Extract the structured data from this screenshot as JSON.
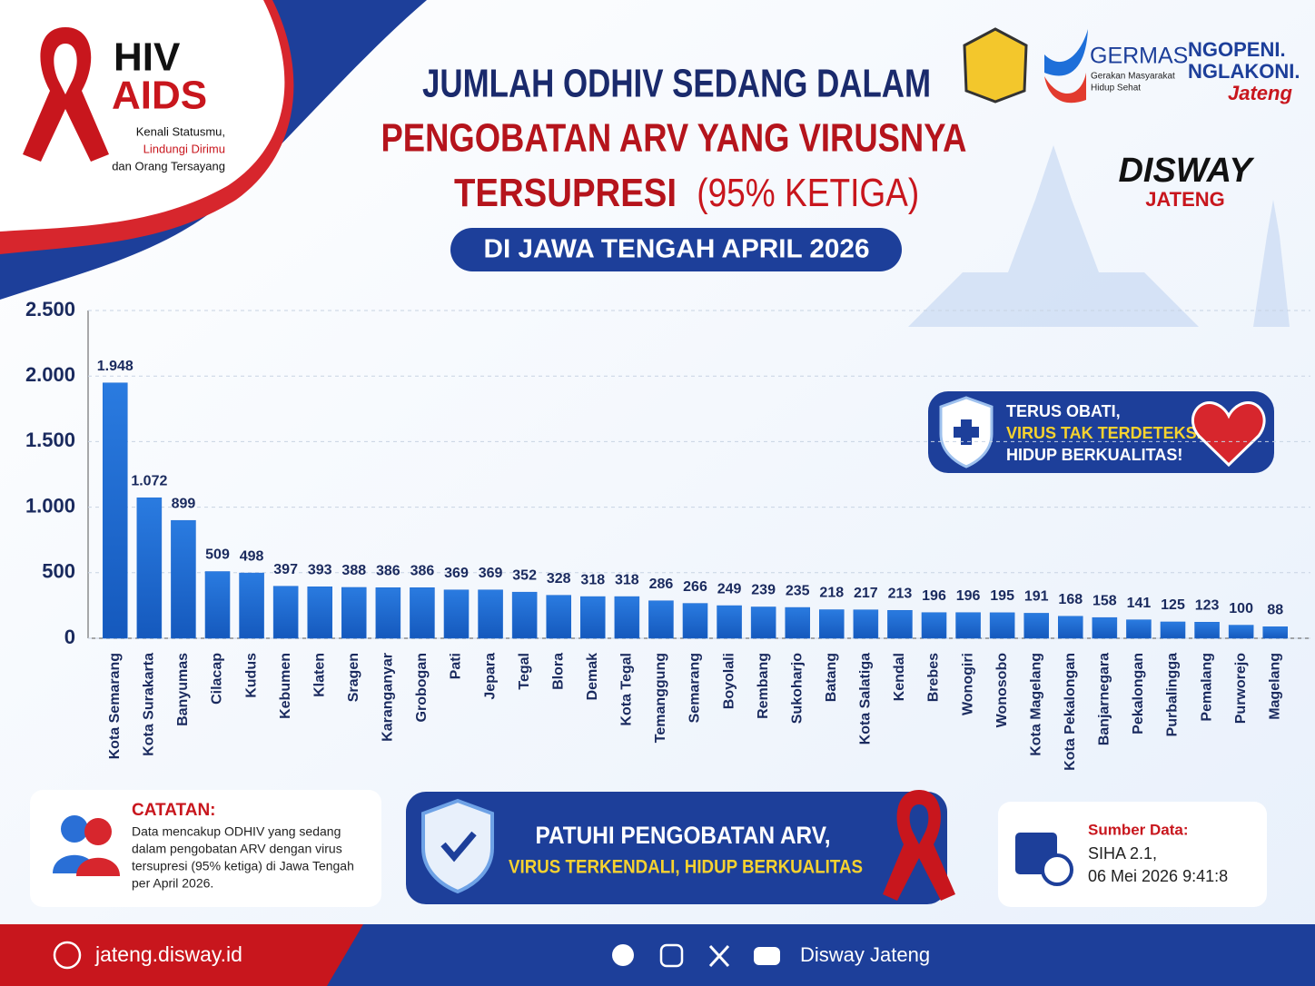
{
  "chart_data": {
    "type": "bar",
    "title_lines": [
      "JUMLAH ODHIV SEDANG DALAM",
      "PENGOBATAN ARV YANG VIRUSNYA",
      "TERSUPRESI",
      "(95% KETIGA)"
    ],
    "subtitle": "DI JAWA TENGAH APRIL 2026",
    "categories": [
      "Kota Semarang",
      "Kota Surakarta",
      "Banyumas",
      "Cilacap",
      "Kudus",
      "Kebumen",
      "Klaten",
      "Sragen",
      "Karanganyar",
      "Grobogan",
      "Pati",
      "Jepara",
      "Tegal",
      "Blora",
      "Demak",
      "Kota Tegal",
      "Temanggung",
      "Semarang",
      "Boyolali",
      "Rembang",
      "Sukoharjo",
      "Batang",
      "Kota Salatiga",
      "Kendal",
      "Brebes",
      "Wonogiri",
      "Wonosobo",
      "Kota Magelang",
      "Kota Pekalongan",
      "Banjarnegara",
      "Pekalongan",
      "Purbalingga",
      "Pemalang",
      "Purworejo",
      "Magelang"
    ],
    "values": [
      1948,
      1072,
      899,
      509,
      498,
      397,
      393,
      388,
      386,
      386,
      369,
      369,
      352,
      328,
      318,
      318,
      286,
      266,
      249,
      239,
      235,
      218,
      217,
      213,
      196,
      196,
      195,
      191,
      168,
      158,
      141,
      125,
      123,
      100,
      88
    ],
    "value_labels": [
      "1.948",
      "1.072",
      "899",
      "509",
      "498",
      "397",
      "393",
      "388",
      "386",
      "386",
      "369",
      "369",
      "352",
      "328",
      "318",
      "318",
      "286",
      "266",
      "249",
      "239",
      "235",
      "218",
      "217",
      "213",
      "196",
      "196",
      "195",
      "191",
      "168",
      "158",
      "141",
      "125",
      "123",
      "100",
      "88"
    ],
    "color": "#1f6bd1",
    "ylim": [
      0,
      2500
    ],
    "yticks": [
      0,
      500,
      {
        "value": 1000,
        "label": "1.000"
      },
      {
        "value": 1500,
        "label": "1.500"
      },
      {
        "value": 2000,
        "label": "2.000"
      },
      {
        "value": 2500,
        "label": "2.500"
      }
    ],
    "grid": true
  },
  "logos": {
    "hiv": "HIV",
    "aids": "AIDS",
    "tagline": [
      "Kenali Statusmu,",
      "Lindungi Dirimu",
      "dan Orang Tersayang"
    ],
    "germas": "GERMAS",
    "germas_sub": [
      "Gerakan Masyarakat",
      "Hidup Sehat"
    ],
    "ngopeni": [
      "NGOPENI.",
      "NGLAKONI.",
      "Jateng"
    ],
    "disway": "DISWAY",
    "disway_sub": "JATENG"
  },
  "badge": [
    "TERUS OBATI,",
    "VIRUS TAK TERDETEKSI,",
    "HIDUP BERKUALITAS!"
  ],
  "note": {
    "title": "CATATAN:",
    "lines": [
      "Data mencakup ODHIV yang sedang",
      "dalam pengobatan ARV dengan virus",
      "tersupresi (95% ketiga) di Jawa Tengah",
      "per April 2026."
    ]
  },
  "banner": [
    "PATUHI PENGOBATAN ARV,",
    "VIRUS TERKENDALI, HIDUP BERKUALITAS"
  ],
  "source": {
    "title": "Sumber Data:",
    "lines": [
      "SIHA 2.1,",
      "06 Mei 2026 9:41:8"
    ]
  },
  "footer": {
    "website": "jateng.disway.id",
    "social": "Disway Jateng"
  }
}
